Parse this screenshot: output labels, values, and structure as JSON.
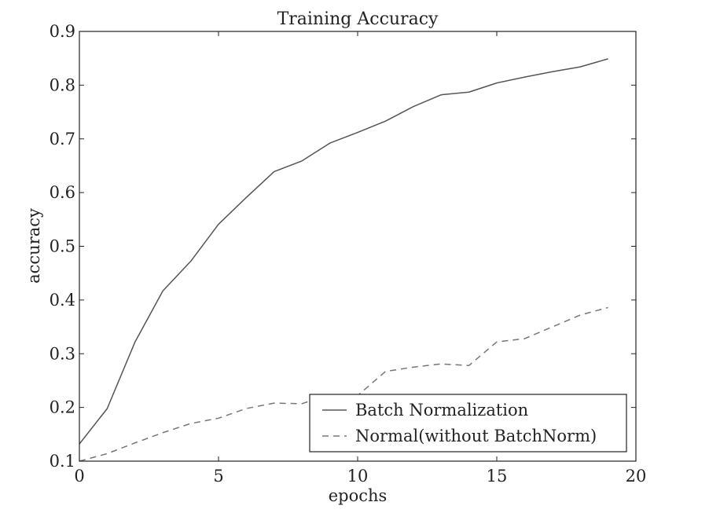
{
  "chart_data": {
    "type": "line",
    "title": "Training Accuracy",
    "xlabel": "epochs",
    "ylabel": "accuracy",
    "xlim": [
      0,
      20
    ],
    "ylim": [
      0.1,
      0.9
    ],
    "xticks": [
      0,
      5,
      10,
      15,
      20
    ],
    "yticks": [
      0.1,
      0.2,
      0.3,
      0.4,
      0.5,
      0.6,
      0.7,
      0.8,
      0.9
    ],
    "xtick_labels": [
      "0",
      "5",
      "10",
      "15",
      "20"
    ],
    "ytick_labels": [
      "0.1",
      "0.2",
      "0.3",
      "0.4",
      "0.5",
      "0.6",
      "0.7",
      "0.8",
      "0.9"
    ],
    "grid": false,
    "legend_position": "lower-right",
    "x": [
      0,
      1,
      2,
      3,
      4,
      5,
      6,
      7,
      8,
      9,
      10,
      11,
      12,
      13,
      14,
      15,
      16,
      17,
      18,
      19
    ],
    "series": [
      {
        "name": "Batch Normalization",
        "style": "solid",
        "color": "#555555",
        "values": [
          0.132,
          0.198,
          0.322,
          0.417,
          0.472,
          0.541,
          0.591,
          0.639,
          0.659,
          0.692,
          0.712,
          0.733,
          0.76,
          0.782,
          0.787,
          0.804,
          0.815,
          0.825,
          0.834,
          0.849
        ]
      },
      {
        "name": "Normal(without BatchNorm)",
        "style": "dashed",
        "color": "#777777",
        "values": [
          0.1,
          0.114,
          0.134,
          0.153,
          0.17,
          0.18,
          0.198,
          0.208,
          0.207,
          0.224,
          0.222,
          0.267,
          0.275,
          0.281,
          0.278,
          0.322,
          0.328,
          0.35,
          0.372,
          0.386
        ]
      }
    ]
  }
}
